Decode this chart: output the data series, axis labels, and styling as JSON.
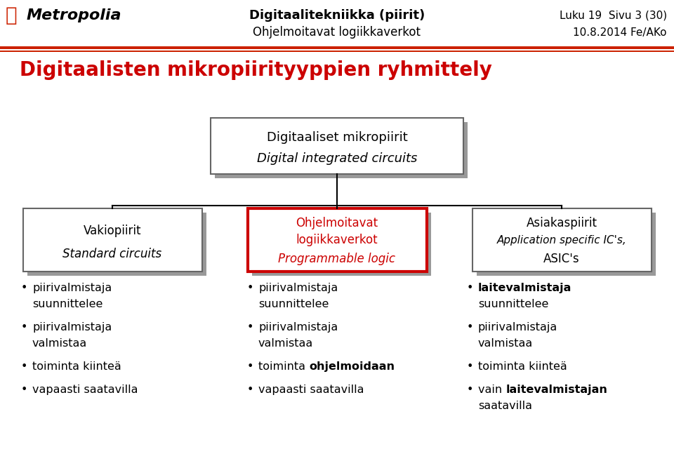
{
  "header_title_bold": "Digitaalitekniikka (piirit)",
  "header_title_normal": "Ohjelmoitavat logiikkaverkot",
  "header_right_1": "Luku 19  Sivu 3 (30)",
  "header_right_2": "10.8.2014 Fe/AKo",
  "main_title": "Digitaalisten mikropiirityyppien ryhmittely",
  "root_box_line1": "Digitaaliset mikropiirit",
  "root_box_line2": "Digital integrated circuits",
  "box1_line1": "Vakiopiirit",
  "box1_line2": "Standard circuits",
  "box2_line1": "Ohjelmoitavat",
  "box2_line2": "logiikkaverkot",
  "box2_line3": "Programmable logic",
  "box3_line1": "Asiakaspiirit",
  "box3_line2": "Application specific IC's,",
  "box3_line3": "ASIC's",
  "red_color": "#CC0000",
  "black": "#000000",
  "gray_shadow": "#999999",
  "bg_color": "#FFFFFF",
  "header_line_color": "#CC2200"
}
